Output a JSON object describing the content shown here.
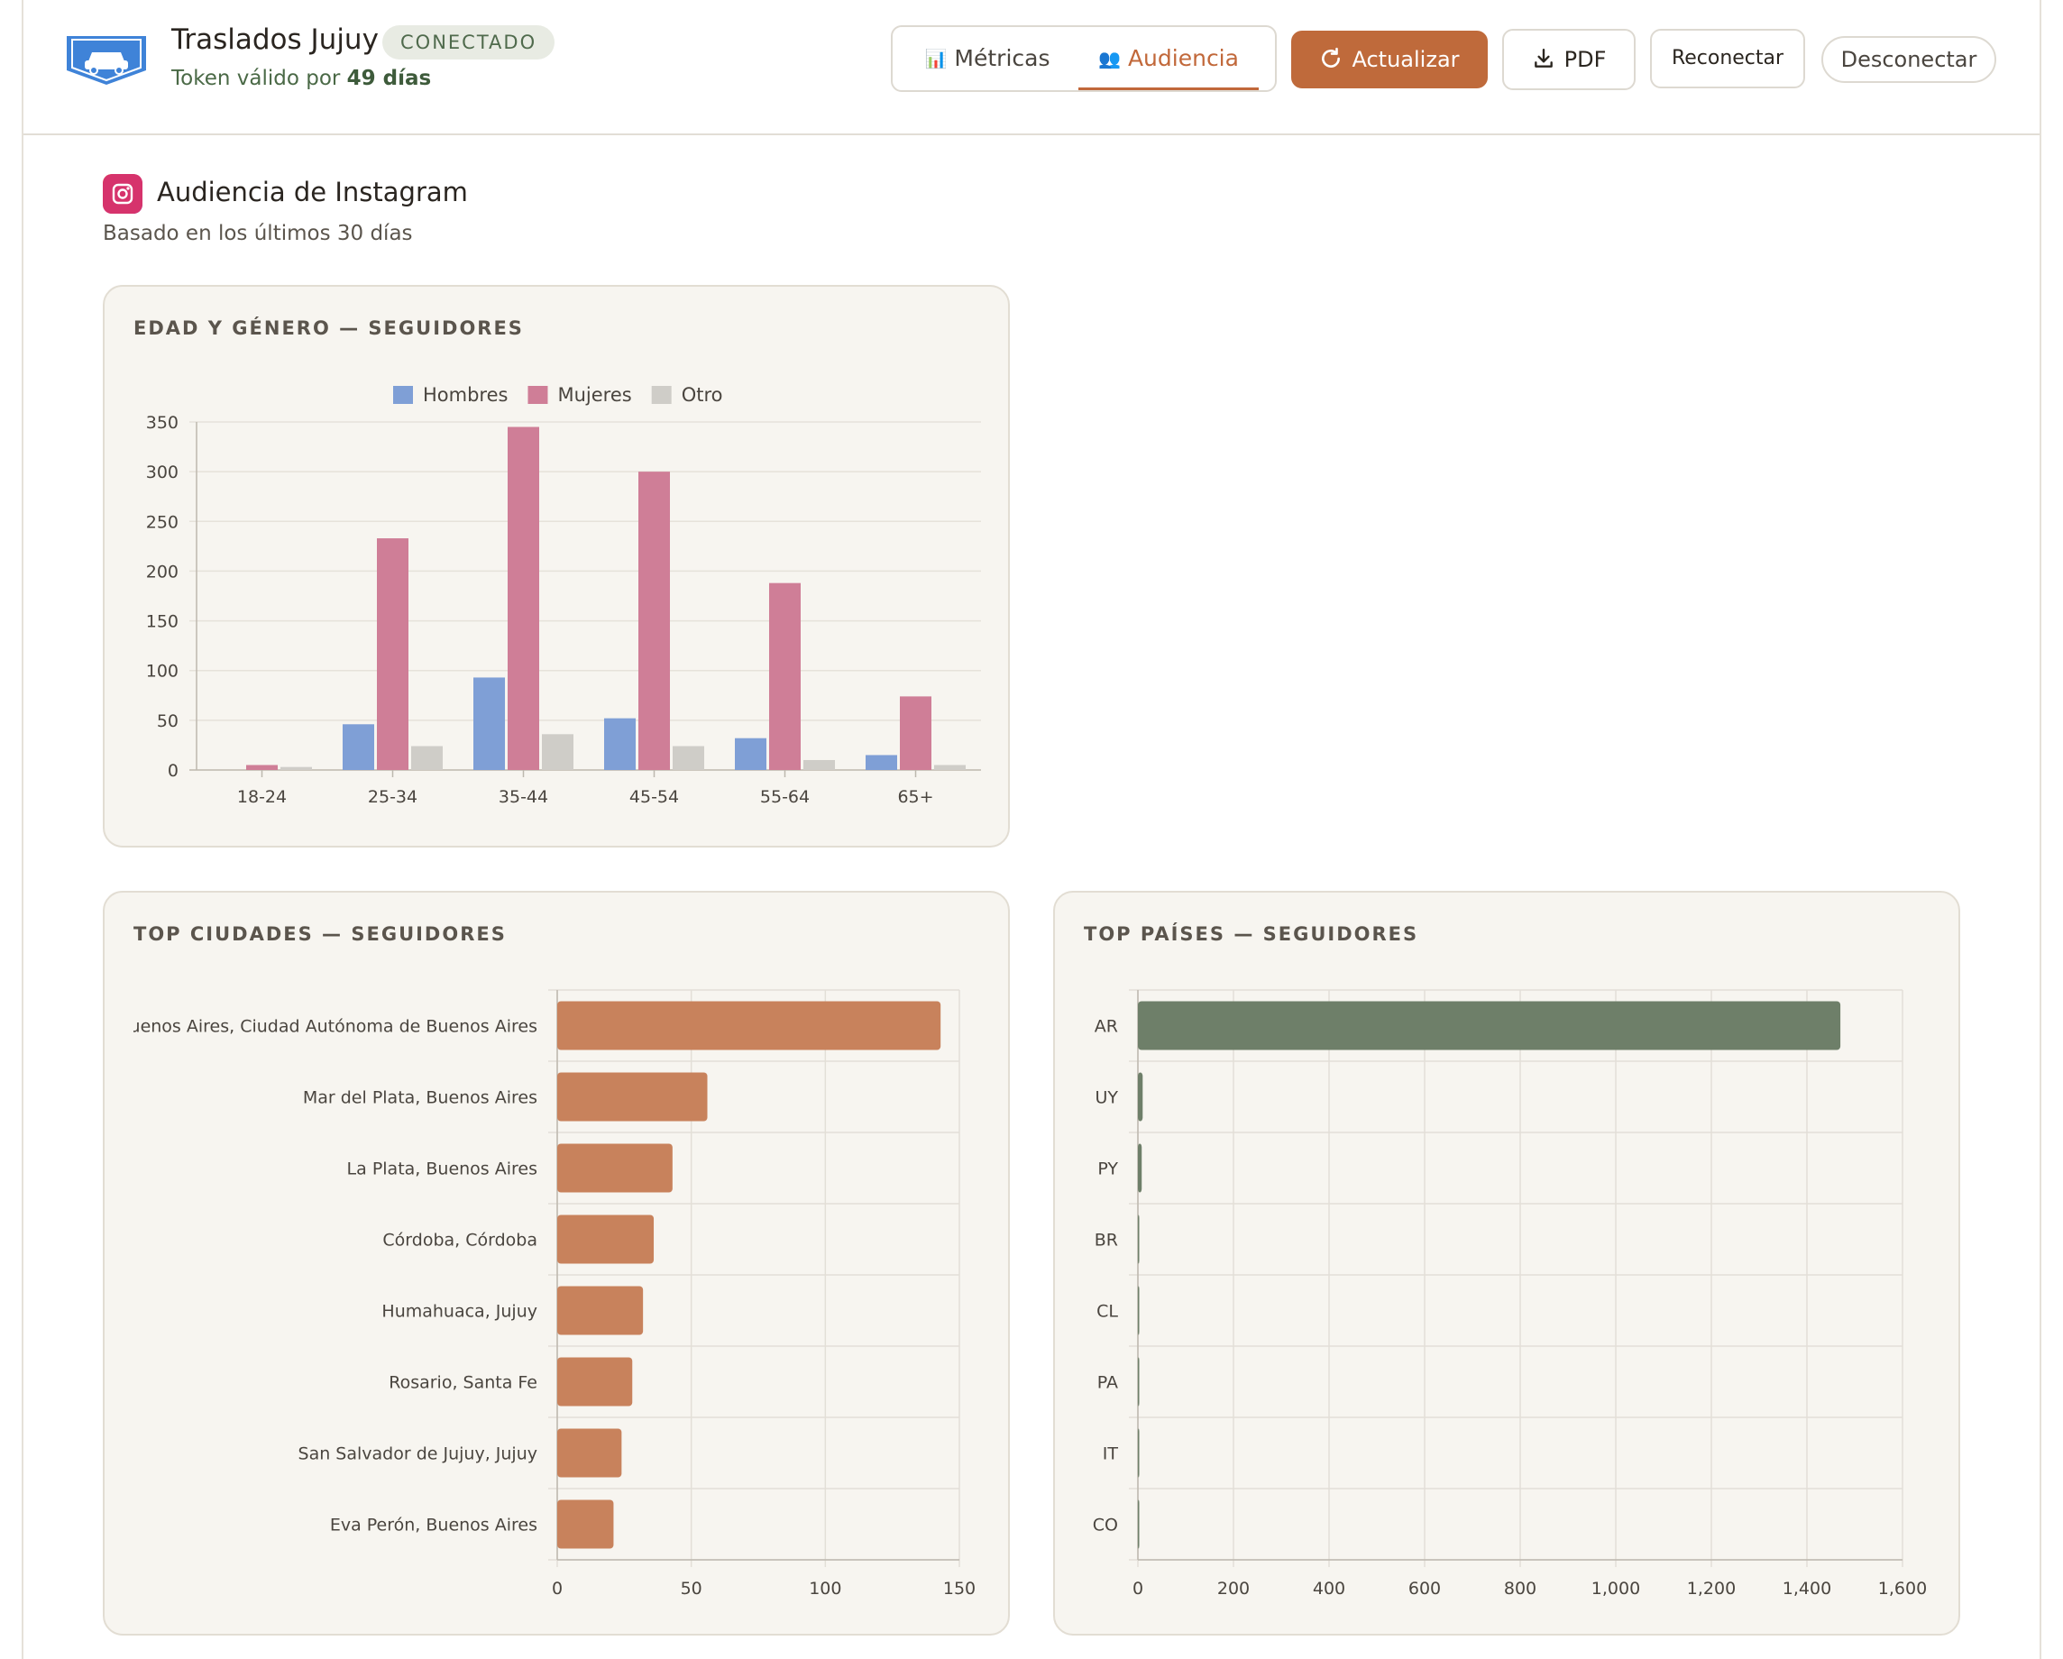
{
  "header": {
    "title": "Traslados Jujuy",
    "status_badge": "CONECTADO",
    "token_prefix": "Token válido por",
    "token_days": "49 días",
    "logo_icon": "car-logo-icon"
  },
  "tabs": [
    {
      "label": "Métricas",
      "icon": "📊",
      "active": false
    },
    {
      "label": "Audiencia",
      "icon": "👥",
      "active": true
    }
  ],
  "actions": {
    "update_label": "Actualizar",
    "pdf_label": "PDF",
    "reconnect_label": "Reconectar",
    "disconnect_label": "Desconectar"
  },
  "colors": {
    "accent": "#bf6a3b",
    "men": "#7f9fd6",
    "women": "#cf7e97",
    "other": "#cfcdc8",
    "city_bar": "#c8825c",
    "country_bar": "#6e7f69"
  },
  "section": {
    "title": "Audiencia de Instagram",
    "subtitle": "Basado en los últimos 30 días"
  },
  "chart_data": [
    {
      "type": "bar",
      "title": "EDAD Y GÉNERO — SEGUIDORES",
      "categories": [
        "18-24",
        "25-34",
        "35-44",
        "45-54",
        "55-64",
        "65+"
      ],
      "series": [
        {
          "name": "Hombres",
          "values": [
            0,
            46,
            93,
            52,
            32,
            15
          ]
        },
        {
          "name": "Mujeres",
          "values": [
            5,
            233,
            345,
            300,
            188,
            74
          ]
        },
        {
          "name": "Otro",
          "values": [
            3,
            24,
            36,
            24,
            10,
            5
          ]
        }
      ],
      "ylim": [
        0,
        350
      ],
      "yticks": [
        0,
        50,
        100,
        150,
        200,
        250,
        300,
        350
      ],
      "legend": "top-center",
      "grid": true
    },
    {
      "type": "bar",
      "orientation": "horizontal",
      "title": "TOP CIUDADES — SEGUIDORES",
      "categories": [
        "Buenos Aires, Ciudad Autónoma de Buenos Aires",
        "Mar del Plata, Buenos Aires",
        "La Plata, Buenos Aires",
        "Córdoba, Córdoba",
        "Humahuaca, Jujuy",
        "Rosario, Santa Fe",
        "San Salvador de Jujuy, Jujuy",
        "Eva Perón, Buenos Aires"
      ],
      "values": [
        143,
        56,
        43,
        36,
        32,
        28,
        24,
        21
      ],
      "xlim": [
        0,
        150
      ],
      "xticks": [
        "0",
        "50",
        "100",
        "150"
      ],
      "grid": true
    },
    {
      "type": "bar",
      "orientation": "horizontal",
      "title": "TOP PAÍSES — SEGUIDORES",
      "categories": [
        "AR",
        "UY",
        "PY",
        "BR",
        "CL",
        "PA",
        "IT",
        "CO"
      ],
      "values": [
        1470,
        10,
        8,
        2,
        2,
        1,
        1,
        1
      ],
      "xlim": [
        0,
        1600
      ],
      "xticks": [
        "0",
        "200",
        "400",
        "600",
        "800",
        "1,000",
        "1,200",
        "1,400",
        "1,600"
      ],
      "grid": true
    }
  ]
}
